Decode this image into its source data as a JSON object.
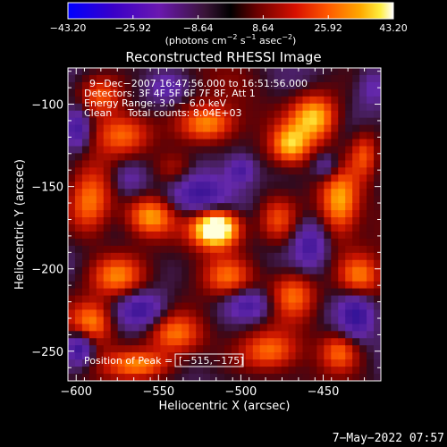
{
  "chart_data": {
    "type": "heatmap",
    "title": "Reconstructed RHESSI Image",
    "xlabel": "Heliocentric X (arcsec)",
    "ylabel": "Heliocentric Y (arcsec)",
    "xlim": [
      -605,
      -415
    ],
    "ylim": [
      -268,
      -78
    ],
    "x_ticks": [
      -600,
      -550,
      -500,
      -450
    ],
    "y_ticks": [
      -100,
      -150,
      -200,
      -250
    ],
    "x_tick_labels": [
      "−600",
      "−550",
      "−500",
      "−450"
    ],
    "y_tick_labels": [
      "−100",
      "−150",
      "−200",
      "−250"
    ],
    "colorbar": {
      "ticks": [
        -43.2,
        -25.92,
        -8.64,
        8.64,
        25.92,
        43.2
      ],
      "tick_labels": [
        "−43.20",
        "−25.92",
        "−8.64",
        "8.64",
        "25.92",
        "43.20"
      ],
      "range": [
        -43.2,
        43.2
      ],
      "units_parts": [
        "(photons cm",
        "−2",
        " s",
        "−1",
        " asec",
        "−2",
        ")"
      ]
    },
    "annotations": [
      "9−Dec−2007 16:47:56.000 to 16:51:56.000",
      "Detectors: 3F 4F 5F 6F 7F 8F, Att 1",
      "Energy Range: 3.0 − 6.0 keV",
      "Clean     Total counts: 8.04E+03"
    ],
    "peak_label": "Position of Peak = ",
    "peak_value": "[−515,−175]",
    "peak": {
      "x": -515,
      "y": -175,
      "value": 43.2
    },
    "sources": [
      {
        "x": -515,
        "y": -175,
        "sx": 10,
        "sy": 8,
        "a": 62
      },
      {
        "x": -455,
        "y": -108,
        "sx": 10,
        "sy": 10,
        "a": 36
      },
      {
        "x": -470,
        "y": -125,
        "sx": 8,
        "sy": 8,
        "a": 30
      },
      {
        "x": -520,
        "y": -112,
        "sx": 12,
        "sy": 8,
        "a": 30
      },
      {
        "x": -572,
        "y": -118,
        "sx": 12,
        "sy": 9,
        "a": 28
      },
      {
        "x": -440,
        "y": -160,
        "sx": 8,
        "sy": 14,
        "a": 30
      },
      {
        "x": -428,
        "y": -205,
        "sx": 9,
        "sy": 9,
        "a": 26
      },
      {
        "x": -468,
        "y": -215,
        "sx": 10,
        "sy": 10,
        "a": 26
      },
      {
        "x": -592,
        "y": -160,
        "sx": 9,
        "sy": 14,
        "a": 26
      },
      {
        "x": -555,
        "y": -168,
        "sx": 10,
        "sy": 8,
        "a": 28
      },
      {
        "x": -575,
        "y": -205,
        "sx": 12,
        "sy": 9,
        "a": 28
      },
      {
        "x": -590,
        "y": -232,
        "sx": 9,
        "sy": 9,
        "a": 28
      },
      {
        "x": -540,
        "y": -240,
        "sx": 12,
        "sy": 9,
        "a": 28
      },
      {
        "x": -560,
        "y": -258,
        "sx": 14,
        "sy": 6,
        "a": 26
      },
      {
        "x": -482,
        "y": -250,
        "sx": 12,
        "sy": 8,
        "a": 24
      },
      {
        "x": -508,
        "y": -205,
        "sx": 10,
        "sy": 8,
        "a": 20
      },
      {
        "x": -440,
        "y": -250,
        "sx": 8,
        "sy": 8,
        "a": 22
      },
      {
        "x": -425,
        "y": -130,
        "sx": 6,
        "sy": 10,
        "a": 22
      },
      {
        "x": -585,
        "y": -95,
        "sx": 9,
        "sy": 8,
        "a": 22
      },
      {
        "x": -540,
        "y": -140,
        "sx": 9,
        "sy": 8,
        "a": 18
      },
      {
        "x": -478,
        "y": -170,
        "sx": 8,
        "sy": 10,
        "a": 20
      },
      {
        "x": -600,
        "y": -115,
        "sx": 6,
        "sy": 9,
        "a": -30
      },
      {
        "x": -525,
        "y": -155,
        "sx": 14,
        "sy": 10,
        "a": -26
      },
      {
        "x": -560,
        "y": -225,
        "sx": 10,
        "sy": 8,
        "a": -24
      },
      {
        "x": -598,
        "y": -248,
        "sx": 6,
        "sy": 7,
        "a": -30
      },
      {
        "x": -495,
        "y": -222,
        "sx": 10,
        "sy": 7,
        "a": -24
      },
      {
        "x": -430,
        "y": -228,
        "sx": 7,
        "sy": 10,
        "a": -24
      },
      {
        "x": -458,
        "y": -185,
        "sx": 7,
        "sy": 10,
        "a": -22
      },
      {
        "x": -500,
        "y": -140,
        "sx": 6,
        "sy": 6,
        "a": -22
      },
      {
        "x": -448,
        "y": -138,
        "sx": 6,
        "sy": 6,
        "a": -18
      },
      {
        "x": -568,
        "y": -145,
        "sx": 8,
        "sy": 8,
        "a": -18
      },
      {
        "x": -545,
        "y": -90,
        "sx": 7,
        "sy": 6,
        "a": -14
      },
      {
        "x": -420,
        "y": -90,
        "sx": 6,
        "sy": 8,
        "a": -14
      }
    ]
  },
  "footer": {
    "date": "7−May−2022 07:57"
  }
}
